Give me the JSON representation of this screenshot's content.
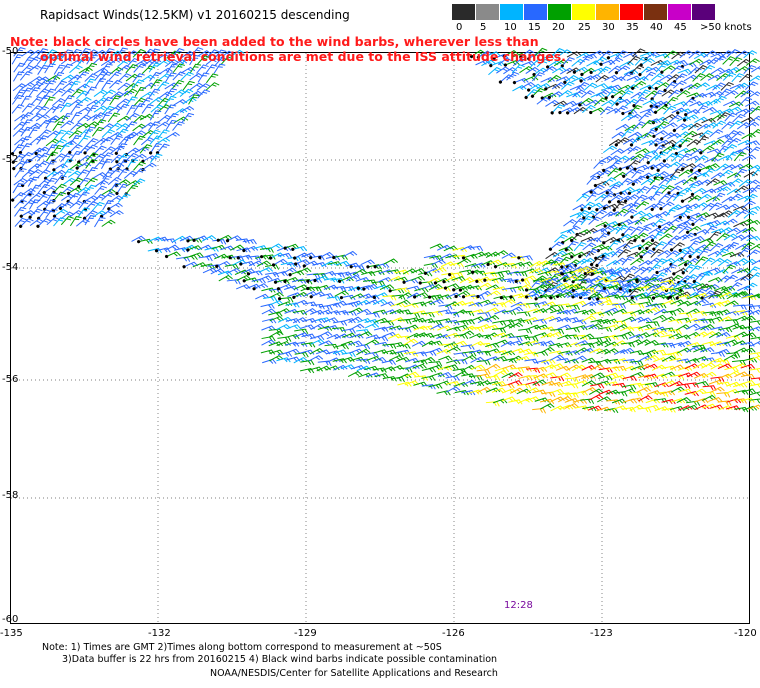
{
  "title": "Rapidsact Winds(12.5KM) v1 20160215 descending",
  "note": {
    "line1": "Note: black circles have been added to the wind barbs, wherever less than",
    "line2": "optimal wind retrieval conditions are met due to the ISS attitude changes."
  },
  "legend": {
    "labels": [
      "0",
      "5",
      "10",
      "15",
      "20",
      "25",
      "30",
      "35",
      "40",
      "45",
      ">50 knots"
    ],
    "colors": [
      "#2a2a2a",
      "#8a8a8a",
      "#00b4ff",
      "#2868ff",
      "#00a000",
      "#ffff00",
      "#ffb400",
      "#ff0000",
      "#7a3010",
      "#c800c8",
      "#5a007a"
    ]
  },
  "map": {
    "lat_labels": [
      "-50",
      "-52",
      "-54",
      "-56",
      "-58",
      "-60"
    ],
    "lon_labels": [
      "-135",
      "-132",
      "-129",
      "-126",
      "-123",
      "-120"
    ],
    "time_label": "12:28"
  },
  "footer": {
    "line1": "Note: 1) Times are GMT 2)Times along bottom correspond to measurement at ~50S",
    "line2": "3)Data buffer is 22 hrs from 20160215 4) Black wind barbs indicate possible contamination",
    "line3": "NOAA/NESDIS/Center for Satellite Applications and Research"
  }
}
